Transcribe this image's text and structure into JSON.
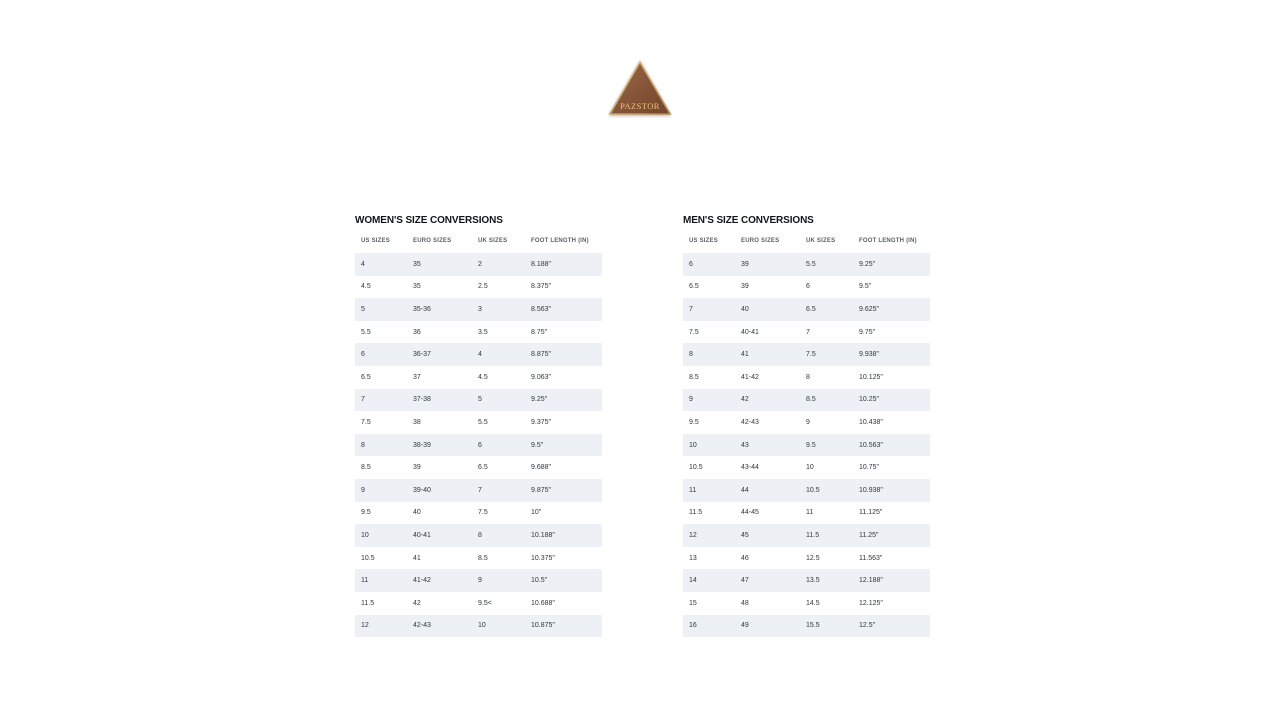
{
  "logo": {
    "brand": "PAZSTOR",
    "shape": "triangle-logo",
    "colors": {
      "fill_top": "#9a6847",
      "fill_bottom": "#74432a",
      "border_gold": "#caa76b",
      "text_gold": "#e9c87f"
    }
  },
  "colors": {
    "page_background": "#ffffff",
    "row_alt_background": "#edf1f6",
    "cell_text": "#30363b",
    "header_text": "#5c6166",
    "title_text": "#111417"
  },
  "tables": {
    "womens": {
      "title": "WOMEN'S SIZE CONVERSIONS",
      "columns": [
        "US SIZES",
        "EURO SIZES",
        "UK SIZES",
        "FOOT LENGTH (IN)"
      ],
      "rows": [
        [
          "4",
          "35",
          "2",
          "8.188\""
        ],
        [
          "4.5",
          "35",
          "2.5",
          "8.375\""
        ],
        [
          "5",
          "35-36",
          "3",
          "8.563\""
        ],
        [
          "5.5",
          "36",
          "3.5",
          "8.75\""
        ],
        [
          "6",
          "36-37",
          "4",
          "8.875\""
        ],
        [
          "6.5",
          "37",
          "4.5",
          "9.063\""
        ],
        [
          "7",
          "37-38",
          "5",
          "9.25\""
        ],
        [
          "7.5",
          "38",
          "5.5",
          "9.375\""
        ],
        [
          "8",
          "38-39",
          "6",
          "9.5\""
        ],
        [
          "8.5",
          "39",
          "6.5",
          "9.688\""
        ],
        [
          "9",
          "39-40",
          "7",
          "9.875\""
        ],
        [
          "9.5",
          "40",
          "7.5",
          "10\""
        ],
        [
          "10",
          "40-41",
          "8",
          "10.188\""
        ],
        [
          "10.5",
          "41",
          "8.5",
          "10.375\""
        ],
        [
          "11",
          "41-42",
          "9",
          "10.5\""
        ],
        [
          "11.5",
          "42",
          "9.5<",
          "10.688\""
        ],
        [
          "12",
          "42-43",
          "10",
          "10.875\""
        ]
      ]
    },
    "mens": {
      "title": "MEN'S SIZE CONVERSIONS",
      "columns": [
        "US SIZES",
        "EURO SIZES",
        "UK SIZES",
        "FOOT LENGTH (IN)"
      ],
      "rows": [
        [
          "6",
          "39",
          "5.5",
          "9.25\""
        ],
        [
          "6.5",
          "39",
          "6",
          "9.5\""
        ],
        [
          "7",
          "40",
          "6.5",
          "9.625\""
        ],
        [
          "7.5",
          "40-41",
          "7",
          "9.75\""
        ],
        [
          "8",
          "41",
          "7.5",
          "9.938\""
        ],
        [
          "8.5",
          "41-42",
          "8",
          "10.125\""
        ],
        [
          "9",
          "42",
          "8.5",
          "10.25\""
        ],
        [
          "9.5",
          "42-43",
          "9",
          "10.438\""
        ],
        [
          "10",
          "43",
          "9.5",
          "10.563\""
        ],
        [
          "10.5",
          "43-44",
          "10",
          "10.75\""
        ],
        [
          "11",
          "44",
          "10.5",
          "10.938\""
        ],
        [
          "11.5",
          "44-45",
          "11",
          "11.125\""
        ],
        [
          "12",
          "45",
          "11.5",
          "11.25\""
        ],
        [
          "13",
          "46",
          "12.5",
          "11.563\""
        ],
        [
          "14",
          "47",
          "13.5",
          "12.188\""
        ],
        [
          "15",
          "48",
          "14.5",
          "12.125\""
        ],
        [
          "16",
          "49",
          "15.5",
          "12.5\""
        ]
      ]
    }
  }
}
